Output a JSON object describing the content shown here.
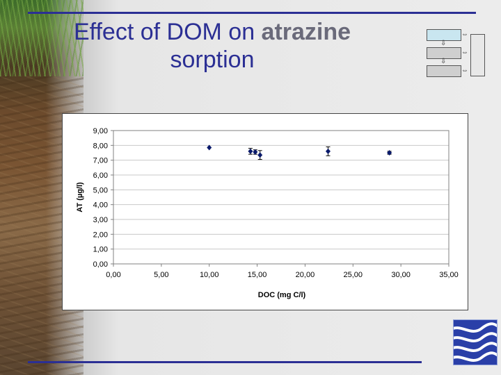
{
  "slide": {
    "title_part1": "Effect of DOM on ",
    "title_bold": "atrazine",
    "title_part2": "sorption",
    "accent_color": "#2b2f94"
  },
  "flow_icons": {
    "down_arrow": "⇩",
    "both_arrow": "⇔"
  },
  "chart_data": {
    "type": "scatter",
    "xlabel": "DOC (mg C/l)",
    "ylabel": "AT (µg/l)",
    "xlim": [
      0,
      35
    ],
    "ylim": [
      0,
      9
    ],
    "x_ticks": [
      "0,00",
      "5,00",
      "10,00",
      "15,00",
      "20,00",
      "25,00",
      "30,00",
      "35,00"
    ],
    "y_ticks": [
      "0,00",
      "1,00",
      "2,00",
      "3,00",
      "4,00",
      "5,00",
      "6,00",
      "7,00",
      "8,00",
      "9,00"
    ],
    "grid": "horizontal",
    "marker_color": "#0a1a6b",
    "points": [
      {
        "x": 10.0,
        "y": 7.85,
        "err": 0.0
      },
      {
        "x": 14.3,
        "y": 7.6,
        "err": 0.2
      },
      {
        "x": 14.8,
        "y": 7.55,
        "err": 0.15
      },
      {
        "x": 15.3,
        "y": 7.35,
        "err": 0.3
      },
      {
        "x": 22.4,
        "y": 7.6,
        "err": 0.3
      },
      {
        "x": 28.8,
        "y": 7.5,
        "err": 0.1
      }
    ]
  }
}
